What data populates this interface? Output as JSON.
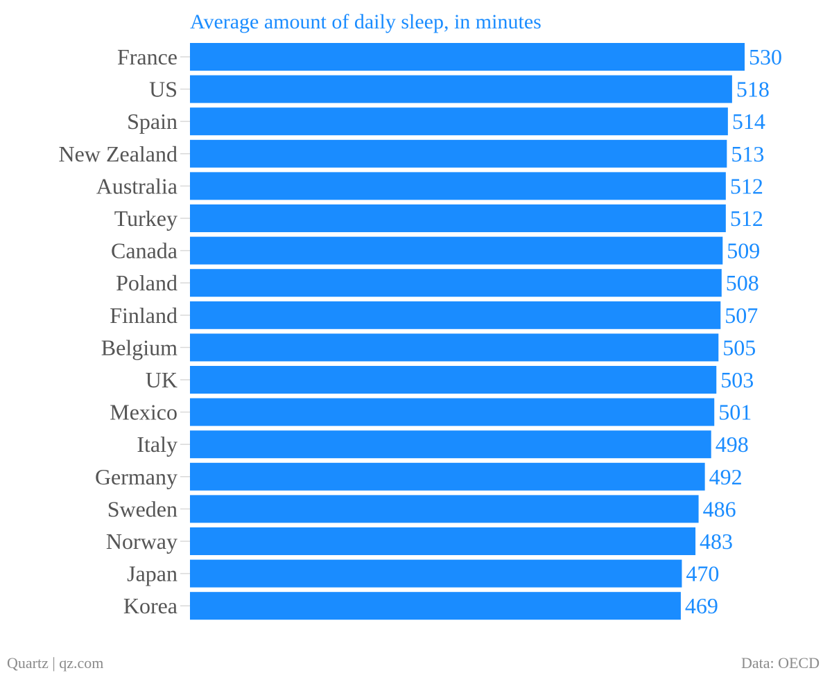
{
  "chart_data": {
    "type": "bar",
    "orientation": "horizontal",
    "title": "Average amount of daily sleep, in minutes",
    "categories": [
      "France",
      "US",
      "Spain",
      "New Zealand",
      "Australia",
      "Turkey",
      "Canada",
      "Poland",
      "Finland",
      "Belgium",
      "UK",
      "Mexico",
      "Italy",
      "Germany",
      "Sweden",
      "Norway",
      "Japan",
      "Korea"
    ],
    "values": [
      530,
      518,
      514,
      513,
      512,
      512,
      509,
      508,
      507,
      505,
      503,
      501,
      498,
      492,
      486,
      483,
      470,
      469
    ],
    "bar_color": "#1a8cff",
    "value_label_color": "#1a8cff",
    "category_label_color": "#555555",
    "grid": false,
    "legend": "none"
  },
  "footer": {
    "source_left": "Quartz | qz.com",
    "source_right": "Data: OECD"
  }
}
